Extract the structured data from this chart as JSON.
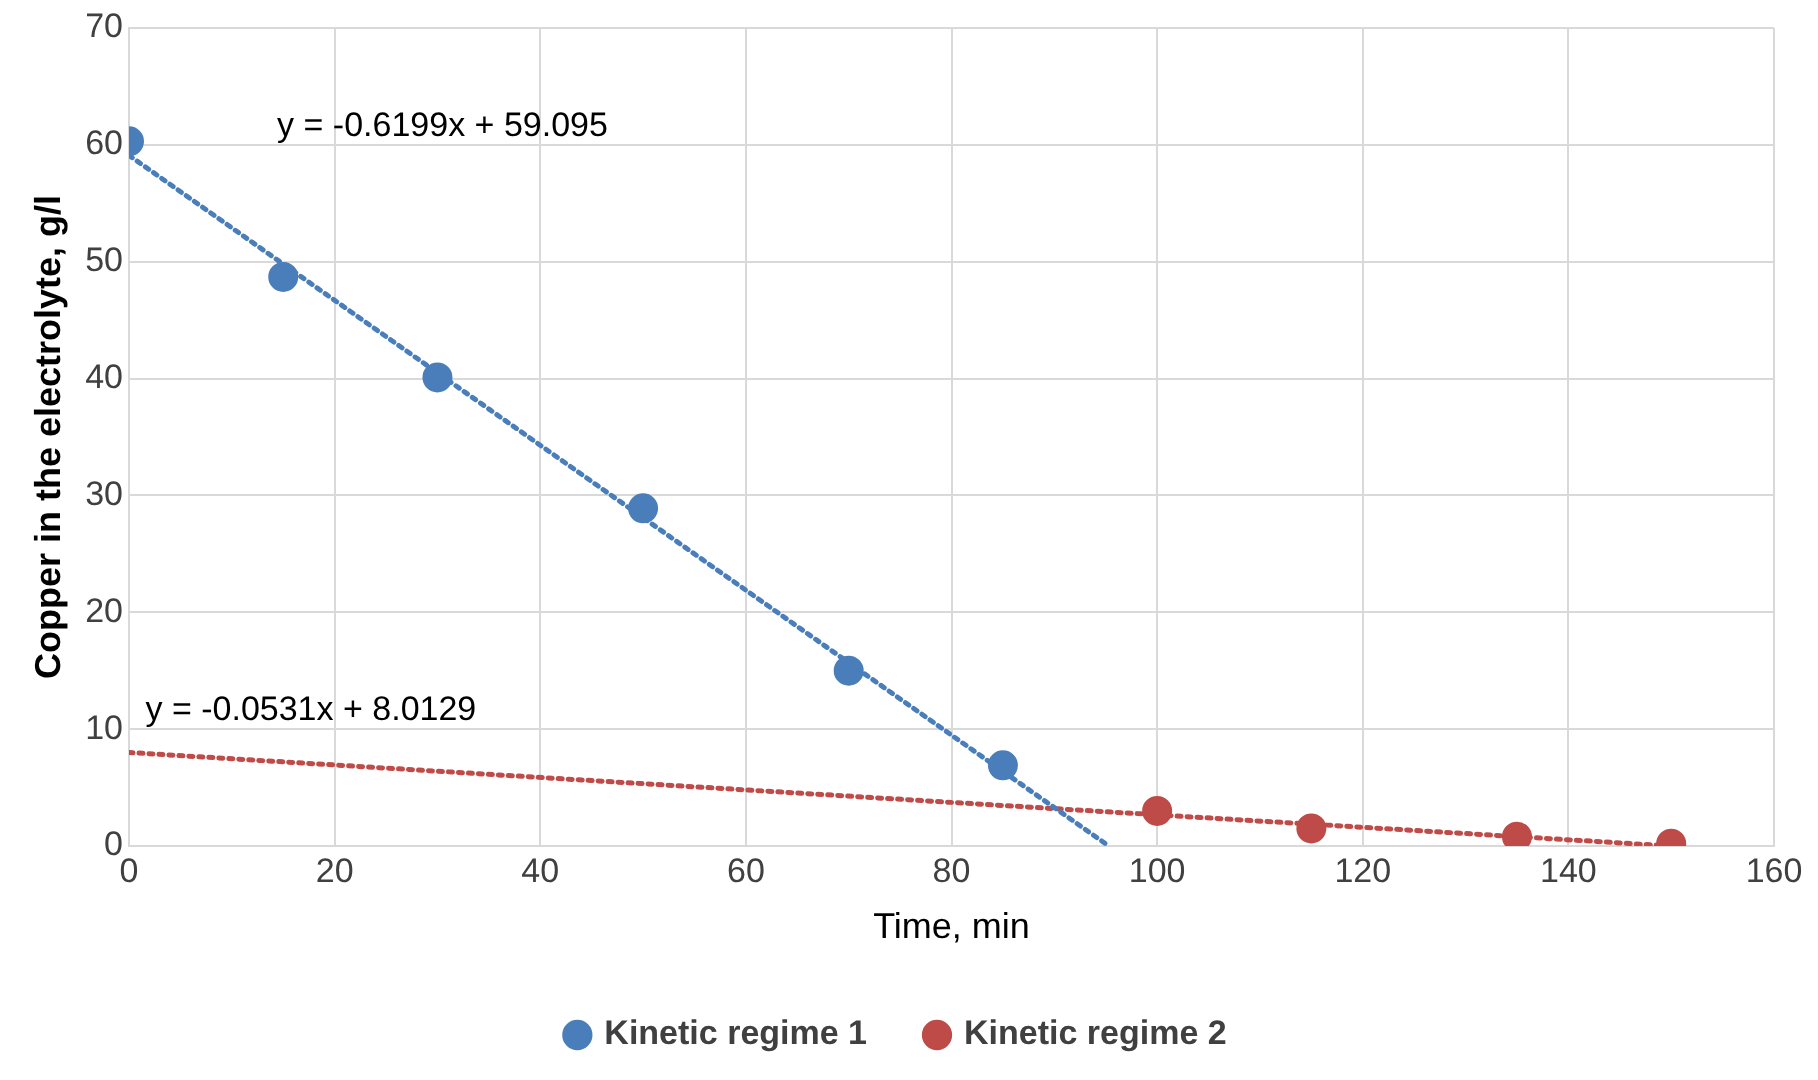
{
  "chart_data": {
    "type": "scatter",
    "xlabel": "Time, min",
    "ylabel": "Copper in the electrolyte, g/l",
    "xlim": [
      0,
      160
    ],
    "xticks": [
      0,
      20,
      40,
      60,
      80,
      100,
      120,
      140,
      160
    ],
    "ylim": [
      0,
      70
    ],
    "yticks": [
      0,
      10,
      20,
      30,
      40,
      50,
      60,
      70
    ],
    "grid": true,
    "legend": "bottom",
    "marker": "circle",
    "series": [
      {
        "name": "Kinetic regime 1",
        "color": "#4a7ebb",
        "x": [
          0,
          15,
          30,
          50,
          70,
          85
        ],
        "values": [
          60.3,
          48.7,
          40.1,
          28.9,
          15,
          6.9
        ]
      },
      {
        "name": "Kinetic regime 2",
        "color": "#be4b48",
        "x": [
          100,
          115,
          135,
          150
        ],
        "values": [
          3,
          1.5,
          0.8,
          0.2
        ]
      },
      {
        "type": "line",
        "color": "#4a7ebb",
        "line_style": "dotted",
        "marker": "none",
        "x": [
          0,
          95.3
        ],
        "values": [
          59.1,
          0
        ]
      },
      {
        "type": "line",
        "color": "#be4b48",
        "line_style": "dotted",
        "marker": "none",
        "x": [
          0,
          150
        ],
        "values": [
          8,
          0
        ]
      }
    ],
    "annotations": [
      "y = -0.6199x + 59.095",
      "y = -0.0531x + 8.0129"
    ]
  }
}
